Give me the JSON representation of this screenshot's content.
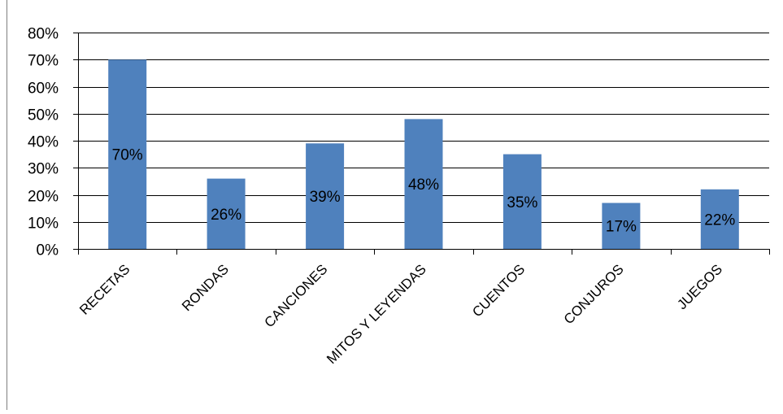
{
  "chart_data": {
    "type": "bar",
    "categories": [
      "RECETAS",
      "RONDAS",
      "CANCIONES",
      "MITOS Y LEYENDAS",
      "CUENTOS",
      "CONJUROS",
      "JUEGOS"
    ],
    "values": [
      70,
      26,
      39,
      48,
      35,
      17,
      22
    ],
    "data_labels": [
      "70%",
      "26%",
      "39%",
      "48%",
      "35%",
      "17%",
      "22%"
    ],
    "ylim": [
      0,
      80
    ],
    "y_ticks": [
      0,
      10,
      20,
      30,
      40,
      50,
      60,
      70,
      80
    ],
    "y_tick_labels": [
      "0%",
      "10%",
      "20%",
      "30%",
      "40%",
      "50%",
      "60%",
      "70%",
      "80%"
    ],
    "grid": true,
    "legend": "none",
    "colors": {
      "bar": "#4F81BD",
      "grid": "#000000",
      "text": "#000000"
    }
  }
}
